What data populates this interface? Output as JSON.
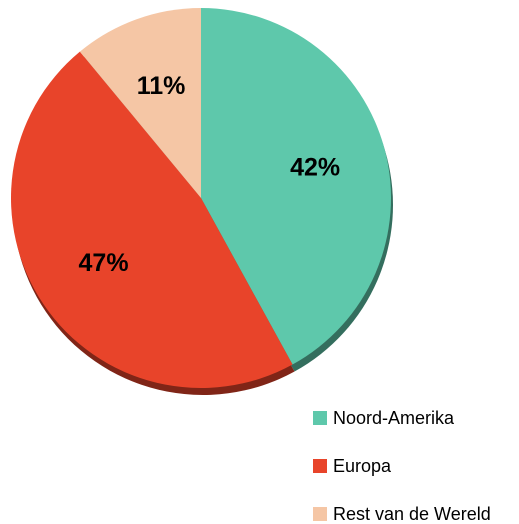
{
  "chart_data": {
    "type": "pie",
    "categories": [
      "Noord-Amerika",
      "Europa",
      "Rest van de Wereld"
    ],
    "values": [
      42,
      47,
      11
    ],
    "value_labels": [
      "42%",
      "47%",
      "11%"
    ],
    "colors": [
      "#5ec8ab",
      "#e8442a",
      "#f5c6a5"
    ],
    "legend": "bottom-right"
  }
}
